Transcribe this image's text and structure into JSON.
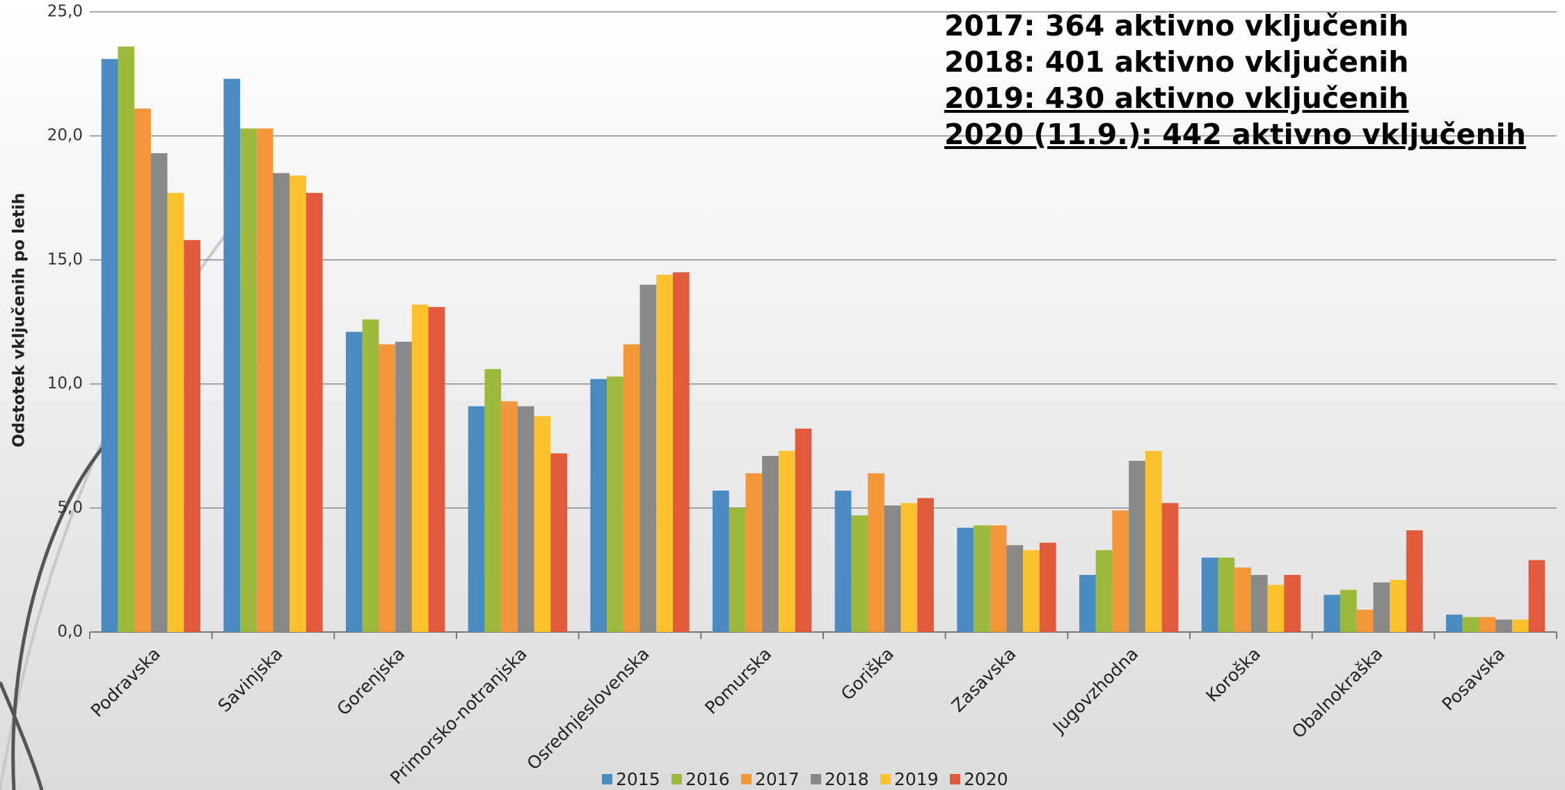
{
  "chart_data": {
    "type": "bar",
    "y_axis_label": "Odstotek vključenih po letih",
    "annotations": [
      {
        "text": "2017: 364 aktivno vključenih",
        "underline": false
      },
      {
        "text": "2018: 401 aktivno vključenih",
        "underline": false
      },
      {
        "text": "2019: 430 aktivno vključenih",
        "underline": true
      },
      {
        "text": "2020 (11.9.): 442 aktivno vključenih",
        "underline": true
      }
    ],
    "categories": [
      "Podravska",
      "Savinjska",
      "Gorenjska",
      "Primorsko-notranjska",
      "Osrednjeslovenska",
      "Pomurska",
      "Goriška",
      "Zasavska",
      "Jugovzhodna",
      "Koroška",
      "Obalnokraška",
      "Posavska"
    ],
    "series": [
      {
        "name": "2015",
        "color": "#4a8cc2",
        "values": [
          23.1,
          22.3,
          12.1,
          9.1,
          10.2,
          5.7,
          5.7,
          4.2,
          2.3,
          3.0,
          1.5,
          0.7
        ]
      },
      {
        "name": "2016",
        "color": "#9cba3c",
        "values": [
          23.6,
          20.3,
          12.6,
          10.6,
          10.3,
          5.0,
          4.7,
          4.3,
          3.3,
          3.0,
          1.7,
          0.6
        ]
      },
      {
        "name": "2017",
        "color": "#f4963a",
        "values": [
          21.1,
          20.3,
          11.6,
          9.3,
          11.6,
          6.4,
          6.4,
          4.3,
          4.9,
          2.6,
          0.9,
          0.6
        ]
      },
      {
        "name": "2018",
        "color": "#898989",
        "values": [
          19.3,
          18.5,
          11.7,
          9.1,
          14.0,
          7.1,
          5.1,
          3.5,
          6.9,
          2.3,
          2.0,
          0.5
        ]
      },
      {
        "name": "2019",
        "color": "#fbc22e",
        "values": [
          17.7,
          18.4,
          13.2,
          8.7,
          14.4,
          7.3,
          5.2,
          3.3,
          7.3,
          1.9,
          2.1,
          0.5
        ]
      },
      {
        "name": "2020",
        "color": "#e05a3b",
        "values": [
          15.8,
          17.7,
          13.1,
          7.2,
          14.5,
          8.2,
          5.4,
          3.6,
          5.2,
          2.3,
          4.1,
          2.9
        ]
      }
    ],
    "ylim": [
      0,
      25
    ],
    "yticks": [
      {
        "value": 0,
        "label": "0,0"
      },
      {
        "value": 5,
        "label": "5,0"
      },
      {
        "value": 10,
        "label": "10,0"
      },
      {
        "value": 15,
        "label": "15,0"
      },
      {
        "value": 20,
        "label": "20,0"
      },
      {
        "value": 25,
        "label": "25,0"
      }
    ],
    "grid": true
  }
}
